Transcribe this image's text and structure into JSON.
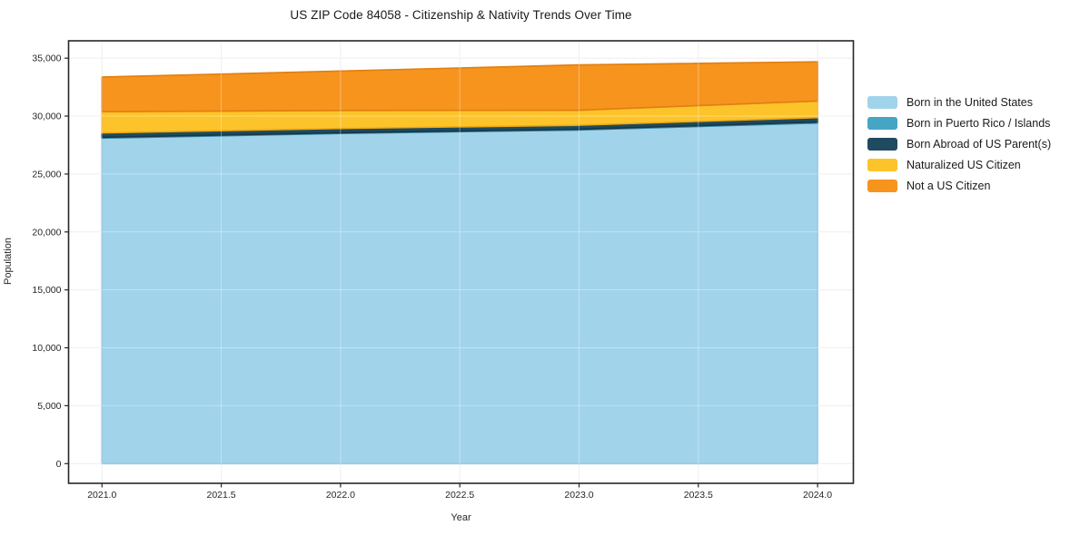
{
  "chart_data": {
    "type": "area",
    "stacked": true,
    "title": "US ZIP Code 84058 - Citizenship & Nativity Trends Over Time",
    "xlabel": "Year",
    "ylabel": "Population",
    "x": [
      2021,
      2022,
      2023,
      2024
    ],
    "series": [
      {
        "name": "Born in the United States",
        "values": [
          28100,
          28500,
          28800,
          29400
        ],
        "color": "#A1D3EB",
        "edge_color": "#7FBCDC"
      },
      {
        "name": "Born in Puerto Rico / Islands",
        "values": [
          70,
          60,
          60,
          90
        ],
        "color": "#45A5C5",
        "edge_color": "#35859F"
      },
      {
        "name": "Born Abroad of US Parent(s)",
        "values": [
          380,
          370,
          350,
          380
        ],
        "color": "#1F4A5F",
        "edge_color": "#163747"
      },
      {
        "name": "Naturalized US Citizen",
        "values": [
          1830,
          1560,
          1300,
          1430
        ],
        "color": "#FDC32B",
        "edge_color": "#EFA912"
      },
      {
        "name": "Not a US Citizen",
        "values": [
          2990,
          3400,
          3910,
          3390
        ],
        "color": "#F7941E",
        "edge_color": "#E07F10"
      }
    ],
    "xticks": {
      "values": [
        2021,
        2021.5,
        2022,
        2022.5,
        2023,
        2023.5,
        2024
      ],
      "labels": [
        "2021.0",
        "2021.5",
        "2022.0",
        "2022.5",
        "2023.0",
        "2023.5",
        "2024.0"
      ]
    },
    "yticks": {
      "values": [
        0,
        5000,
        10000,
        15000,
        20000,
        25000,
        30000,
        35000
      ],
      "labels": [
        "0",
        "5,000",
        "10,000",
        "15,000",
        "20,000",
        "25,000",
        "30,000",
        "35,000"
      ]
    },
    "xlim": [
      2020.86,
      2024.15
    ],
    "ylim": [
      -1700,
      36500
    ],
    "grid": true,
    "legend_position": "right-outside"
  },
  "colors": {
    "background": "#FFFFFF",
    "grid": "#E8E8E8",
    "grid_over_area": "rgba(255,255,255,0.35)",
    "spine": "#262626",
    "tick": "#262626",
    "text": "#262626"
  }
}
